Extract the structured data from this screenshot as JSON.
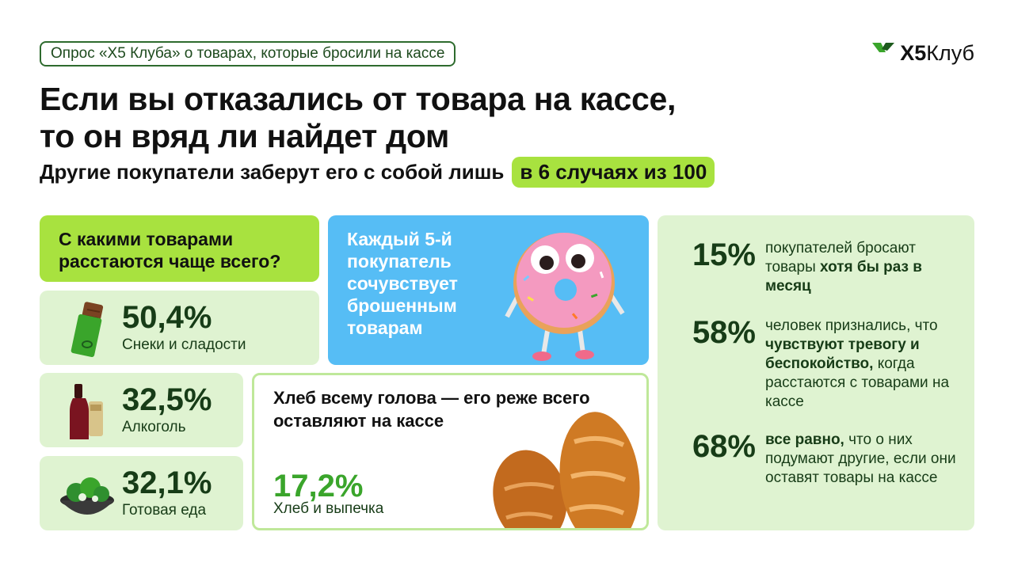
{
  "header": {
    "tag": "Опрос «Х5 Клуба» о товарах, которые бросили на кассе",
    "logo_bold": "Х5",
    "logo_light": "Клуб",
    "title_line1": "Если вы отказались от товара на кассе,",
    "title_line2": "то он вряд ли найдет дом",
    "subtitle": "Другие покупатели заберут его с собой лишь",
    "subtitle_pill": "в 6 случаях из 100"
  },
  "question": {
    "title": "С какими товарами расстаются чаще всего?"
  },
  "categories": [
    {
      "pct": "50,4%",
      "label": "Снеки и сладости",
      "icon": "chocolate-icon"
    },
    {
      "pct": "32,5%",
      "label": "Алкоголь",
      "icon": "wine-bottle-icon"
    },
    {
      "pct": "32,1%",
      "label": "Готовая еда",
      "icon": "salad-bowl-icon"
    }
  ],
  "sympathy": {
    "text": "Каждый 5-й покупатель сочувствует брошенным товарам",
    "icon": "donut-mascot-icon"
  },
  "bread": {
    "title": "Хлеб всему голова — его реже всего оставляют на кассе",
    "pct": "17,2%",
    "label": "Хлеб и выпечка",
    "icon": "bread-loaves-icon"
  },
  "stats": [
    {
      "pct": "15%",
      "pre": "покупателей бросают товары ",
      "bold": "хотя бы раз в месяц",
      "post": ""
    },
    {
      "pct": "58%",
      "pre": "человек признались, что ",
      "bold": "чувствуют тревогу и беспокойство,",
      "post": " когда расстаются с товарами на кассе"
    },
    {
      "pct": "68%",
      "pre": "",
      "bold": "все равно,",
      "post": " что о них подумают другие, если они оставят товары на кассе"
    }
  ],
  "colors": {
    "lime": "#a8e23f",
    "mint": "#dff3d1",
    "sky": "#56bdf5",
    "dark_green": "#173c17",
    "bright_green": "#3aa52b"
  }
}
